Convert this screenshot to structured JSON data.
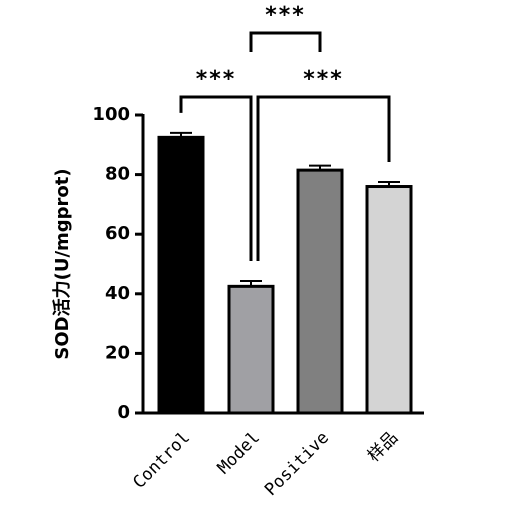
{
  "chart_data": {
    "type": "bar",
    "y_label": "SOD活力(U/mgprot)",
    "categories": [
      "Control",
      "Model",
      "Positive",
      "样品"
    ],
    "values": [
      92.5,
      42.5,
      81.5,
      76
    ],
    "errors": [
      1.5,
      1.8,
      1.5,
      1.5
    ],
    "colors": [
      "#000000",
      "#a0a0a4",
      "#808080",
      "#d4d4d4"
    ],
    "ylim": [
      0,
      100
    ],
    "yticks": [
      0,
      20,
      40,
      60,
      80,
      100
    ],
    "grid": false,
    "significance": [
      {
        "groups": [
          "Control",
          "Model"
        ],
        "label": "***"
      },
      {
        "groups": [
          "Model",
          "Positive"
        ],
        "label": "***"
      },
      {
        "groups": [
          "Model",
          "样品"
        ],
        "label": "***"
      }
    ]
  }
}
